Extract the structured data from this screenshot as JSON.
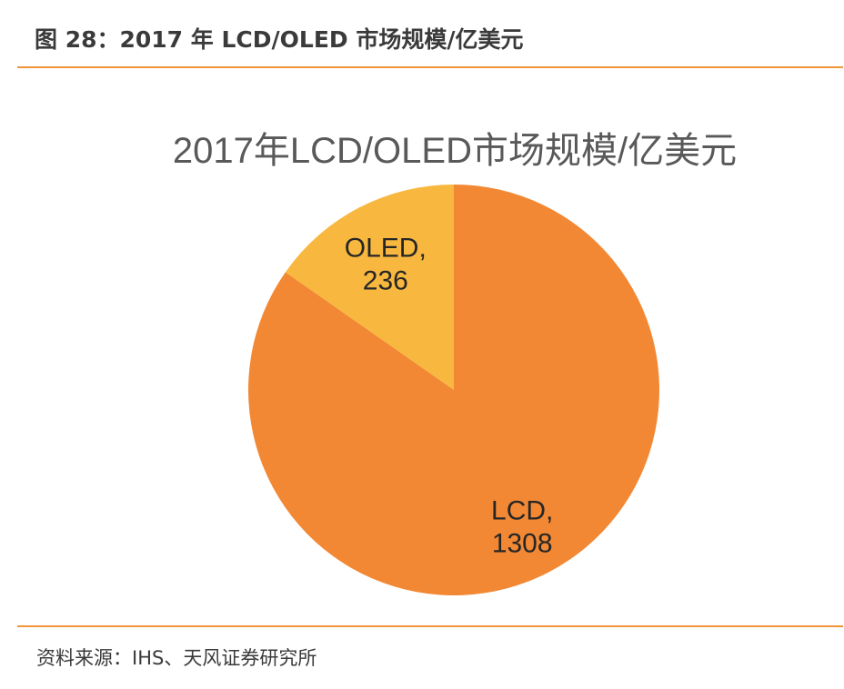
{
  "figure_caption": "图 28：2017 年 LCD/OLED 市场规模/亿美元",
  "source_note": "资料来源：IHS、天风证券研究所",
  "colors": {
    "rule": "#f0953a",
    "lcd": "#f28834",
    "oled": "#f8b840",
    "title_text": "#595959",
    "label_text": "#262626",
    "caption_text": "#3a3a3a"
  },
  "chart_data": {
    "type": "pie",
    "title": "2017年LCD/OLED市场规模/亿美元",
    "start_angle_deg": 0,
    "direction": "counterclockwise",
    "slices": [
      {
        "name": "OLED",
        "value": 236,
        "label_line1": "OLED,",
        "label_line2": "236",
        "color": "#f8b840"
      },
      {
        "name": "LCD",
        "value": 1308,
        "label_line1": "LCD,",
        "label_line2": "1308",
        "color": "#f28834"
      }
    ]
  }
}
